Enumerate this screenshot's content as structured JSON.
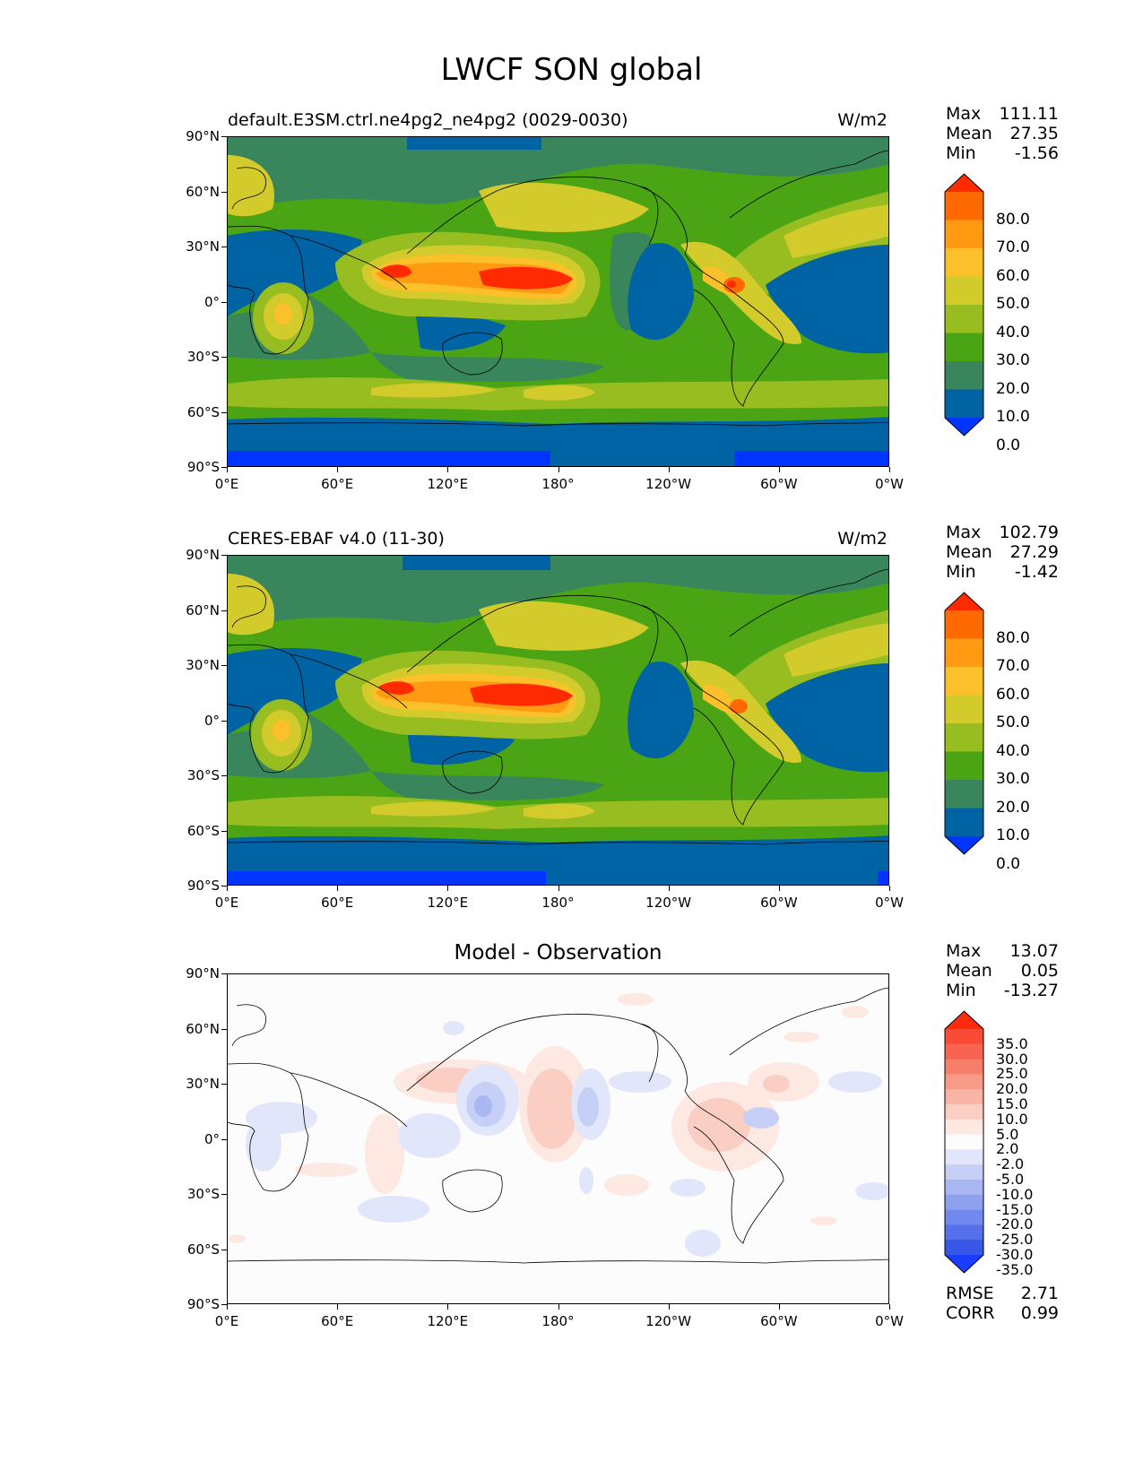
{
  "title": "LWCF SON global",
  "axes": {
    "lat_ticks": [
      "90°N",
      "60°N",
      "30°N",
      "0°",
      "30°S",
      "60°S",
      "90°S"
    ],
    "lon_ticks": [
      "0°E",
      "60°E",
      "120°E",
      "180°",
      "120°W",
      "60°W",
      "0°W"
    ]
  },
  "panels": [
    {
      "id": "test",
      "title": "default.E3SM.ctrl.ne4pg2_ne4pg2 (0029-0030)",
      "units": "W/m2",
      "stats": [
        {
          "label": "Max",
          "value": "111.11"
        },
        {
          "label": "Mean",
          "value": "27.35"
        },
        {
          "label": "Min",
          "value": "-1.56"
        }
      ],
      "colorbar": {
        "labels": [
          "80.0",
          "70.0",
          "60.0",
          "50.0",
          "40.0",
          "30.0",
          "20.0",
          "10.0",
          "0.0"
        ],
        "colors": [
          "#ff2a00",
          "#ff6a00",
          "#ff9a12",
          "#fcc02a",
          "#d3cb2b",
          "#98bd20",
          "#4aa414",
          "#3a865c",
          "#0063a3",
          "#0034ff"
        ]
      }
    },
    {
      "id": "reference",
      "title": "CERES-EBAF v4.0 (11-30)",
      "units": "W/m2",
      "stats": [
        {
          "label": "Max",
          "value": "102.79"
        },
        {
          "label": "Mean",
          "value": "27.29"
        },
        {
          "label": "Min",
          "value": "-1.42"
        }
      ],
      "colorbar": {
        "labels": [
          "80.0",
          "70.0",
          "60.0",
          "50.0",
          "40.0",
          "30.0",
          "20.0",
          "10.0",
          "0.0"
        ],
        "colors": [
          "#ff2a00",
          "#ff6a00",
          "#ff9a12",
          "#fcc02a",
          "#d3cb2b",
          "#98bd20",
          "#4aa414",
          "#3a865c",
          "#0063a3",
          "#0034ff"
        ]
      }
    },
    {
      "id": "difference",
      "title": "Model - Observation",
      "stats": [
        {
          "label": "Max",
          "value": "13.07"
        },
        {
          "label": "Mean",
          "value": "0.05"
        },
        {
          "label": "Min",
          "value": "-13.27"
        }
      ],
      "colorbar": {
        "labels": [
          "35.0",
          "30.0",
          "25.0",
          "20.0",
          "15.0",
          "10.0",
          "5.0",
          "2.0",
          "-2.0",
          "-5.0",
          "-10.0",
          "-15.0",
          "-20.0",
          "-25.0",
          "-30.0",
          "-35.0"
        ],
        "colors": [
          "#ff2a0a",
          "#fb4a36",
          "#f96450",
          "#f77f6a",
          "#f79a87",
          "#f9b4a5",
          "#fbcec4",
          "#fde8e2",
          "#fcfcfc",
          "#e1e6fb",
          "#c6d0f7",
          "#a9b8f3",
          "#8ea1f0",
          "#7189ed",
          "#5570ea",
          "#3857e8",
          "#1a3dff"
        ]
      },
      "metrics": [
        {
          "label": "RMSE",
          "value": "2.71"
        },
        {
          "label": "CORR",
          "value": "0.99"
        }
      ]
    }
  ]
}
